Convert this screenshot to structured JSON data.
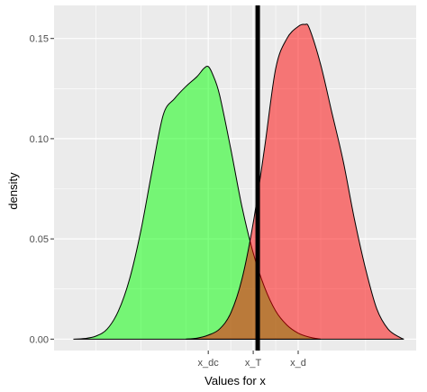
{
  "chart_data": {
    "type": "area",
    "title": "",
    "xlabel": "Values for x",
    "ylabel": "density",
    "ylim": [
      -0.0057,
      0.1665
    ],
    "xlim": [
      -0.86,
      15.25
    ],
    "grid": true,
    "legend": "none",
    "panel_background": "#ebebeb",
    "grid_color": "#ffffff",
    "y_ticks": [
      {
        "value": 0.0,
        "label": "0.00"
      },
      {
        "value": 0.05,
        "label": "0.05"
      },
      {
        "value": 0.1,
        "label": "0.10"
      },
      {
        "value": 0.15,
        "label": "0.15"
      }
    ],
    "x_ticks": [
      {
        "value": 6,
        "label": "x_dc"
      },
      {
        "value": 8,
        "label": "x_T"
      },
      {
        "value": 10,
        "label": "x_d"
      }
    ],
    "x_minor_grid": [
      1,
      3,
      5,
      7,
      9,
      11,
      13
    ],
    "vertical_line": {
      "x": 8.2,
      "color": "#000000"
    },
    "series": [
      {
        "fill": "#00ff00",
        "opacity": 0.5,
        "x": [
          0.0,
          0.5,
          1.0,
          1.5,
          2.0,
          2.5,
          3.0,
          3.5,
          4.0,
          4.5,
          5.0,
          5.5,
          5.8,
          6.0,
          6.2,
          6.5,
          7.0,
          7.5,
          8.0,
          8.5,
          9.0,
          9.5,
          10.0,
          10.5,
          11.0
        ],
        "y": [
          0.0,
          0.0003,
          0.0015,
          0.005,
          0.014,
          0.03,
          0.054,
          0.084,
          0.112,
          0.12,
          0.126,
          0.131,
          0.135,
          0.136,
          0.132,
          0.122,
          0.095,
          0.066,
          0.043,
          0.026,
          0.014,
          0.007,
          0.003,
          0.001,
          0.0
        ]
      },
      {
        "fill": "#ff0000",
        "opacity": 0.5,
        "x": [
          5.0,
          5.5,
          6.0,
          6.5,
          7.0,
          7.5,
          8.0,
          8.5,
          9.0,
          9.5,
          10.0,
          10.3,
          10.5,
          11.0,
          11.5,
          12.0,
          12.5,
          13.0,
          13.5,
          14.0,
          14.5,
          14.7
        ],
        "y": [
          0.0,
          0.0005,
          0.002,
          0.005,
          0.013,
          0.03,
          0.058,
          0.095,
          0.135,
          0.15,
          0.156,
          0.157,
          0.155,
          0.137,
          0.113,
          0.089,
          0.06,
          0.035,
          0.015,
          0.005,
          0.001,
          0.0
        ]
      }
    ]
  }
}
